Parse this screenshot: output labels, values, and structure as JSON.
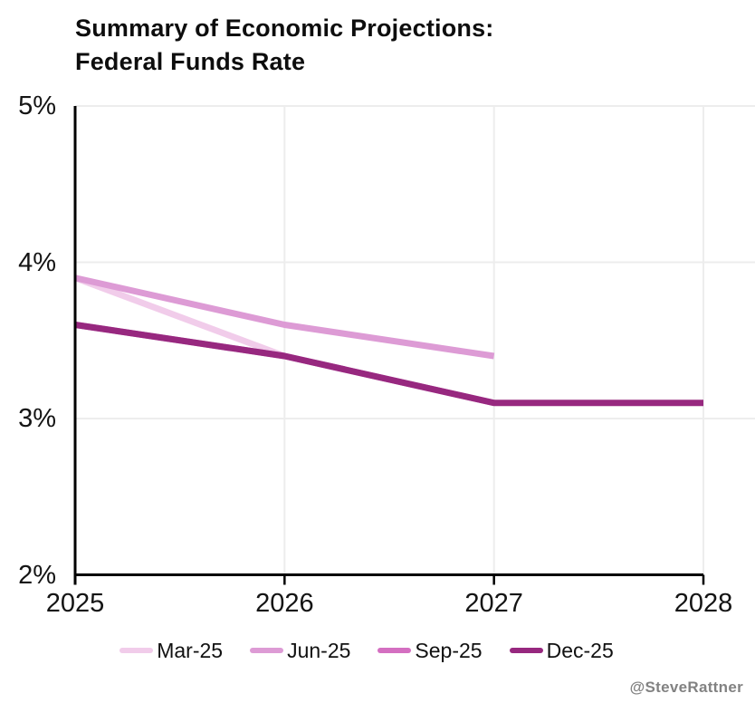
{
  "chart_data": {
    "type": "line",
    "title": "Summary of Economic Projections: Federal Funds Rate",
    "title_lines": [
      "Summary of Economic Projections:",
      "Federal Funds Rate"
    ],
    "unit": "%",
    "xlim": [
      2025,
      2028
    ],
    "ylim": [
      2,
      5
    ],
    "grid": true,
    "legend_position": "bottom",
    "x_ticks": [
      {
        "value": 2025,
        "label": "2025"
      },
      {
        "value": 2026,
        "label": "2026"
      },
      {
        "value": 2027,
        "label": "2027"
      },
      {
        "value": 2028,
        "label": "2028"
      }
    ],
    "y_ticks": [
      {
        "value": 5,
        "label": "5%"
      },
      {
        "value": 4,
        "label": "4%"
      },
      {
        "value": 3,
        "label": "3%"
      },
      {
        "value": 2,
        "label": "2%"
      }
    ],
    "series": [
      {
        "name": "Mar-25",
        "color": "#F1CCEA",
        "x": [
          2025,
          2026,
          2027
        ],
        "values": [
          3.9,
          3.4,
          3.1
        ]
      },
      {
        "name": "Jun-25",
        "color": "#DD9BD5",
        "x": [
          2025,
          2026,
          2027
        ],
        "values": [
          3.9,
          3.6,
          3.4
        ]
      },
      {
        "name": "Sep-25",
        "color": "#D46FC1",
        "x": [
          2025,
          2026,
          2027
        ],
        "values": [
          3.6,
          3.4,
          3.1
        ]
      },
      {
        "name": "Dec-25",
        "color": "#97287F",
        "x": [
          2025,
          2026,
          2027,
          2028
        ],
        "values": [
          3.6,
          3.4,
          3.1,
          3.1
        ]
      }
    ],
    "colors": {
      "axis": "#000000",
      "gridline": "#ededed",
      "tick_label": "#141414"
    },
    "watermark": "@SteveRattner"
  }
}
